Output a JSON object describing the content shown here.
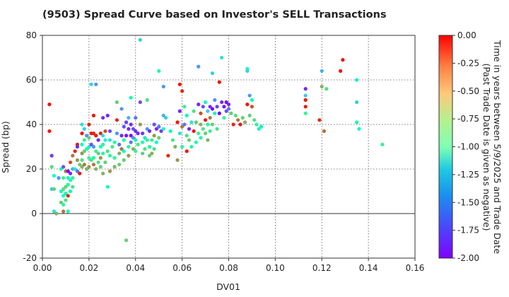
{
  "chart_data": {
    "type": "scatter",
    "title": "(9503)   Spread Curve based on Investor's SELL Transactions",
    "xlabel": "DV01",
    "ylabel": "Spread (bp)",
    "xlim": [
      0.0,
      0.16
    ],
    "ylim": [
      -20,
      80
    ],
    "xticks": [
      0.0,
      0.02,
      0.04,
      0.06,
      0.08,
      0.1,
      0.12,
      0.14,
      0.16
    ],
    "xtick_labels": [
      "0.00",
      "0.02",
      "0.04",
      "0.06",
      "0.08",
      "0.10",
      "0.12",
      "0.14",
      "0.16"
    ],
    "yticks": [
      -20,
      0,
      20,
      40,
      60,
      80
    ],
    "ytick_labels": [
      "-20",
      "0",
      "20",
      "40",
      "60",
      "80"
    ],
    "grid": true,
    "zero_line": true,
    "colorbar": {
      "label_lines": [
        "Time in years between 5/9/2025 and Trade Date",
        "(Past Trade Date is given as negative)"
      ],
      "range": [
        -2.0,
        0.0
      ],
      "ticks": [
        0.0,
        -0.25,
        -0.5,
        -0.75,
        -1.0,
        -1.25,
        -1.5,
        -1.75,
        -2.0
      ],
      "tick_labels": [
        "0.00",
        "-0.25",
        "-0.50",
        "-0.75",
        "-1.00",
        "-1.25",
        "-1.50",
        "-1.75",
        "-2.00"
      ],
      "colormap": "rainbow"
    },
    "points": [
      [
        0.003,
        49,
        -0.05
      ],
      [
        0.003,
        37,
        -0.05
      ],
      [
        0.004,
        26,
        -1.85
      ],
      [
        0.004,
        21,
        -0.7
      ],
      [
        0.004,
        11,
        -1.4
      ],
      [
        0.005,
        17,
        -1.1
      ],
      [
        0.005,
        11,
        -0.6
      ],
      [
        0.005,
        1,
        -1.3
      ],
      [
        0.006,
        0,
        -0.5
      ],
      [
        0.007,
        16,
        -1.6
      ],
      [
        0.008,
        20,
        -0.9
      ],
      [
        0.008,
        10,
        -1.0
      ],
      [
        0.008,
        5,
        -0.6
      ],
      [
        0.009,
        21,
        -1.8
      ],
      [
        0.009,
        16,
        -0.8
      ],
      [
        0.009,
        11,
        -0.7
      ],
      [
        0.009,
        8,
        -1.1
      ],
      [
        0.009,
        4,
        -0.85
      ],
      [
        0.009,
        1,
        -0.3
      ],
      [
        0.01,
        19,
        -0.3
      ],
      [
        0.01,
        12,
        -0.6
      ],
      [
        0.01,
        9,
        -1.0
      ],
      [
        0.01,
        6,
        -0.7
      ],
      [
        0.011,
        19,
        -2.0
      ],
      [
        0.011,
        16,
        -1.2
      ],
      [
        0.011,
        13,
        -0.9
      ],
      [
        0.011,
        8,
        -0.1
      ],
      [
        0.011,
        1,
        -1.2
      ],
      [
        0.012,
        23,
        -0.2
      ],
      [
        0.012,
        18,
        -1.9
      ],
      [
        0.012,
        15,
        -0.9
      ],
      [
        0.012,
        10,
        -1.0
      ],
      [
        0.013,
        26,
        -0.3
      ],
      [
        0.013,
        20,
        -1.5
      ],
      [
        0.013,
        16,
        -0.8
      ],
      [
        0.013,
        12,
        -0.7
      ],
      [
        0.014,
        28,
        -0.1
      ],
      [
        0.014,
        20,
        -1.3
      ],
      [
        0.015,
        31,
        -0.05
      ],
      [
        0.015,
        30,
        -1.9
      ],
      [
        0.015,
        24,
        -0.4
      ],
      [
        0.015,
        19,
        -1.7
      ],
      [
        0.016,
        22,
        -0.6
      ],
      [
        0.016,
        18,
        -0.05
      ],
      [
        0.017,
        40,
        -1.3
      ],
      [
        0.017,
        36,
        -0.05
      ],
      [
        0.017,
        31,
        -1.0
      ],
      [
        0.017,
        27,
        -0.4
      ],
      [
        0.017,
        24,
        -0.7
      ],
      [
        0.017,
        21,
        -0.5
      ],
      [
        0.018,
        38,
        -1.4
      ],
      [
        0.018,
        33,
        -0.8
      ],
      [
        0.018,
        28,
        -0.6
      ],
      [
        0.018,
        22,
        -0.3
      ],
      [
        0.019,
        35,
        -1.6
      ],
      [
        0.019,
        29,
        -0.9
      ],
      [
        0.019,
        20,
        -0.5
      ],
      [
        0.02,
        40,
        -0.1
      ],
      [
        0.02,
        34,
        -0.6
      ],
      [
        0.02,
        30,
        -1.2
      ],
      [
        0.02,
        25,
        -0.8
      ],
      [
        0.02,
        21,
        -0.4
      ],
      [
        0.021,
        36,
        -0.05
      ],
      [
        0.021,
        31,
        -1.8
      ],
      [
        0.021,
        24,
        -0.7
      ],
      [
        0.021,
        58,
        -1.4
      ],
      [
        0.022,
        44,
        -0.05
      ],
      [
        0.022,
        36,
        -0.1
      ],
      [
        0.022,
        30,
        -1.6
      ],
      [
        0.022,
        25,
        -0.9
      ],
      [
        0.022,
        22,
        -0.3
      ],
      [
        0.023,
        58,
        -1.6
      ],
      [
        0.023,
        35,
        -0.05
      ],
      [
        0.023,
        28,
        -0.8
      ],
      [
        0.023,
        20,
        -0.5
      ],
      [
        0.024,
        33,
        -1.9
      ],
      [
        0.024,
        27,
        -0.6
      ],
      [
        0.024,
        23,
        -0.7
      ],
      [
        0.025,
        36,
        -0.1
      ],
      [
        0.025,
        30,
        -1.1
      ],
      [
        0.025,
        25,
        -0.4
      ],
      [
        0.025,
        21,
        -0.6
      ],
      [
        0.026,
        43,
        -1.9
      ],
      [
        0.026,
        35,
        -1.3
      ],
      [
        0.026,
        31,
        -0.8
      ],
      [
        0.026,
        27,
        -0.9
      ],
      [
        0.026,
        18,
        -0.5
      ],
      [
        0.027,
        37,
        -0.2
      ],
      [
        0.027,
        33,
        -1.2
      ],
      [
        0.027,
        23,
        -0.6
      ],
      [
        0.028,
        44,
        -1.9
      ],
      [
        0.028,
        28,
        -0.7
      ],
      [
        0.028,
        12,
        -1.1
      ],
      [
        0.029,
        37,
        -1.8
      ],
      [
        0.029,
        33,
        -1.3
      ],
      [
        0.029,
        26,
        -0.9
      ],
      [
        0.029,
        19,
        -0.4
      ],
      [
        0.03,
        30,
        -0.7
      ],
      [
        0.031,
        32,
        -0.9
      ],
      [
        0.031,
        25,
        -0.8
      ],
      [
        0.031,
        21,
        -0.5
      ],
      [
        0.032,
        36,
        -1.6
      ],
      [
        0.032,
        50,
        -0.6
      ],
      [
        0.032,
        42,
        -0.1
      ],
      [
        0.033,
        31,
        -1.7
      ],
      [
        0.033,
        27,
        -0.5
      ],
      [
        0.033,
        22,
        -0.6
      ],
      [
        0.034,
        35,
        -1.9
      ],
      [
        0.034,
        47,
        -1.6
      ],
      [
        0.034,
        29,
        -0.3
      ],
      [
        0.035,
        39,
        -1.8
      ],
      [
        0.035,
        33,
        -0.9
      ],
      [
        0.035,
        28,
        -1.0
      ],
      [
        0.035,
        24,
        -0.6
      ],
      [
        0.036,
        -12,
        -0.6
      ],
      [
        0.036,
        41,
        -1.85
      ],
      [
        0.036,
        35,
        -1.95
      ],
      [
        0.037,
        43,
        -1.5
      ],
      [
        0.037,
        38,
        -1.9
      ],
      [
        0.037,
        30,
        -0.8
      ],
      [
        0.037,
        26,
        -0.4
      ],
      [
        0.038,
        40,
        -1.9
      ],
      [
        0.038,
        35,
        -2.0
      ],
      [
        0.038,
        32,
        -1.7
      ],
      [
        0.038,
        52,
        -1.0
      ],
      [
        0.039,
        38,
        -1.8
      ],
      [
        0.039,
        34,
        -1.6
      ],
      [
        0.039,
        29,
        -0.5
      ],
      [
        0.04,
        43,
        -1.7
      ],
      [
        0.04,
        37,
        -1.9
      ],
      [
        0.04,
        33,
        -1.0
      ],
      [
        0.04,
        28,
        -0.8
      ],
      [
        0.041,
        36,
        -1.9
      ],
      [
        0.041,
        31,
        -0.7
      ],
      [
        0.042,
        78,
        -1.4
      ],
      [
        0.042,
        50,
        -1.8
      ],
      [
        0.042,
        40,
        -0.4
      ],
      [
        0.043,
        36,
        -1.85
      ],
      [
        0.043,
        32,
        -0.9
      ],
      [
        0.043,
        27,
        -0.6
      ],
      [
        0.044,
        34,
        -1.3
      ],
      [
        0.044,
        29,
        -0.7
      ],
      [
        0.045,
        38,
        -1.6
      ],
      [
        0.045,
        33,
        -0.8
      ],
      [
        0.045,
        51,
        -0.7
      ],
      [
        0.046,
        37,
        -1.9
      ],
      [
        0.046,
        30,
        -0.9
      ],
      [
        0.046,
        26,
        -0.6
      ],
      [
        0.047,
        33,
        -0.8
      ],
      [
        0.047,
        27,
        -0.5
      ],
      [
        0.048,
        40,
        -1.8
      ],
      [
        0.048,
        35,
        -0.4
      ],
      [
        0.048,
        29,
        -0.7
      ],
      [
        0.049,
        38,
        -1.9
      ],
      [
        0.049,
        32,
        -1.0
      ],
      [
        0.05,
        64,
        -0.9
      ],
      [
        0.05,
        39,
        -1.7
      ],
      [
        0.05,
        34,
        -0.6
      ],
      [
        0.051,
        37,
        -1.85
      ],
      [
        0.052,
        57,
        -1.6
      ],
      [
        0.052,
        44,
        -1.5
      ],
      [
        0.052,
        38,
        -1.2
      ],
      [
        0.053,
        43,
        -1.4
      ],
      [
        0.054,
        26,
        -0.1
      ],
      [
        0.055,
        37,
        -1.0
      ],
      [
        0.056,
        33,
        -0.7
      ],
      [
        0.057,
        30,
        -0.5
      ],
      [
        0.058,
        41,
        -0.05
      ],
      [
        0.058,
        24,
        -0.4
      ],
      [
        0.059,
        58,
        -0.05
      ],
      [
        0.059,
        46,
        -1.9
      ],
      [
        0.059,
        36,
        -1.3
      ],
      [
        0.06,
        55,
        -0.1
      ],
      [
        0.06,
        39,
        -0.3
      ],
      [
        0.06,
        30,
        -0.8
      ],
      [
        0.061,
        48,
        -0.8
      ],
      [
        0.061,
        40,
        -1.7
      ],
      [
        0.062,
        44,
        -1.0
      ],
      [
        0.062,
        35,
        -0.7
      ],
      [
        0.062,
        28,
        -0.05
      ],
      [
        0.063,
        38,
        -1.9
      ],
      [
        0.063,
        33,
        -0.6
      ],
      [
        0.064,
        41,
        -1.3
      ],
      [
        0.064,
        30,
        -0.9
      ],
      [
        0.065,
        37,
        -0.05
      ],
      [
        0.065,
        46,
        -0.7
      ],
      [
        0.066,
        32,
        -0.9
      ],
      [
        0.066,
        41,
        -0.6
      ],
      [
        0.067,
        66,
        -1.6
      ],
      [
        0.067,
        49,
        -1.9
      ],
      [
        0.067,
        36,
        -0.8
      ],
      [
        0.068,
        45,
        -0.2
      ],
      [
        0.068,
        40,
        -0.5
      ],
      [
        0.068,
        34,
        -0.9
      ],
      [
        0.069,
        48,
        -1.8
      ],
      [
        0.069,
        38,
        -0.7
      ],
      [
        0.07,
        50,
        -1.0
      ],
      [
        0.07,
        42,
        -0.05
      ],
      [
        0.07,
        36,
        -0.6
      ],
      [
        0.071,
        46,
        -1.4
      ],
      [
        0.071,
        40,
        -0.9
      ],
      [
        0.071,
        33,
        -0.5
      ],
      [
        0.072,
        48,
        -1.9
      ],
      [
        0.072,
        43,
        -0.3
      ],
      [
        0.072,
        37,
        -0.8
      ],
      [
        0.073,
        63,
        -1.4
      ],
      [
        0.073,
        47,
        -2.0
      ],
      [
        0.073,
        40,
        -0.6
      ],
      [
        0.074,
        51,
        -1.6
      ],
      [
        0.074,
        45,
        -1.0
      ],
      [
        0.075,
        38,
        -0.7
      ],
      [
        0.075,
        48,
        -1.85
      ],
      [
        0.076,
        59,
        -0.05
      ],
      [
        0.076,
        45,
        -2.0
      ],
      [
        0.077,
        70,
        -1.3
      ],
      [
        0.077,
        50,
        -1.9
      ],
      [
        0.078,
        43,
        -0.8
      ],
      [
        0.078,
        48,
        -1.95
      ],
      [
        0.079,
        46,
        -1.8
      ],
      [
        0.079,
        50,
        -2.0
      ],
      [
        0.08,
        49,
        -1.9
      ],
      [
        0.08,
        47,
        -1.7
      ],
      [
        0.081,
        45,
        -0.6
      ],
      [
        0.082,
        40,
        -0.1
      ],
      [
        0.083,
        44,
        -0.7
      ],
      [
        0.084,
        42,
        -0.3
      ],
      [
        0.085,
        40,
        -0.05
      ],
      [
        0.086,
        43,
        -0.6
      ],
      [
        0.087,
        41,
        -0.5
      ],
      [
        0.088,
        64,
        -1.4
      ],
      [
        0.088,
        65,
        -1.2
      ],
      [
        0.088,
        49,
        -0.05
      ],
      [
        0.089,
        53,
        -1.6
      ],
      [
        0.089,
        44,
        -0.6
      ],
      [
        0.09,
        51,
        -1.0
      ],
      [
        0.09,
        48,
        -0.2
      ],
      [
        0.091,
        42,
        -0.7
      ],
      [
        0.092,
        40,
        -0.8
      ],
      [
        0.093,
        38,
        -1.2
      ],
      [
        0.094,
        39,
        -1.0
      ],
      [
        0.113,
        56,
        -1.9
      ],
      [
        0.113,
        53,
        -1.4
      ],
      [
        0.113,
        51,
        -0.05
      ],
      [
        0.113,
        48,
        -0.05
      ],
      [
        0.113,
        45,
        -0.8
      ],
      [
        0.119,
        42,
        -0.1
      ],
      [
        0.12,
        64,
        -1.5
      ],
      [
        0.12,
        57,
        -0.5
      ],
      [
        0.121,
        37,
        -0.3
      ],
      [
        0.122,
        56,
        -0.7
      ],
      [
        0.128,
        64,
        -0.05
      ],
      [
        0.129,
        69,
        -0.05
      ],
      [
        0.135,
        60,
        -1.3
      ],
      [
        0.135,
        50,
        -1.4
      ],
      [
        0.135,
        41,
        -1.0
      ],
      [
        0.136,
        38,
        -1.1
      ],
      [
        0.146,
        31,
        -0.8
      ]
    ]
  }
}
